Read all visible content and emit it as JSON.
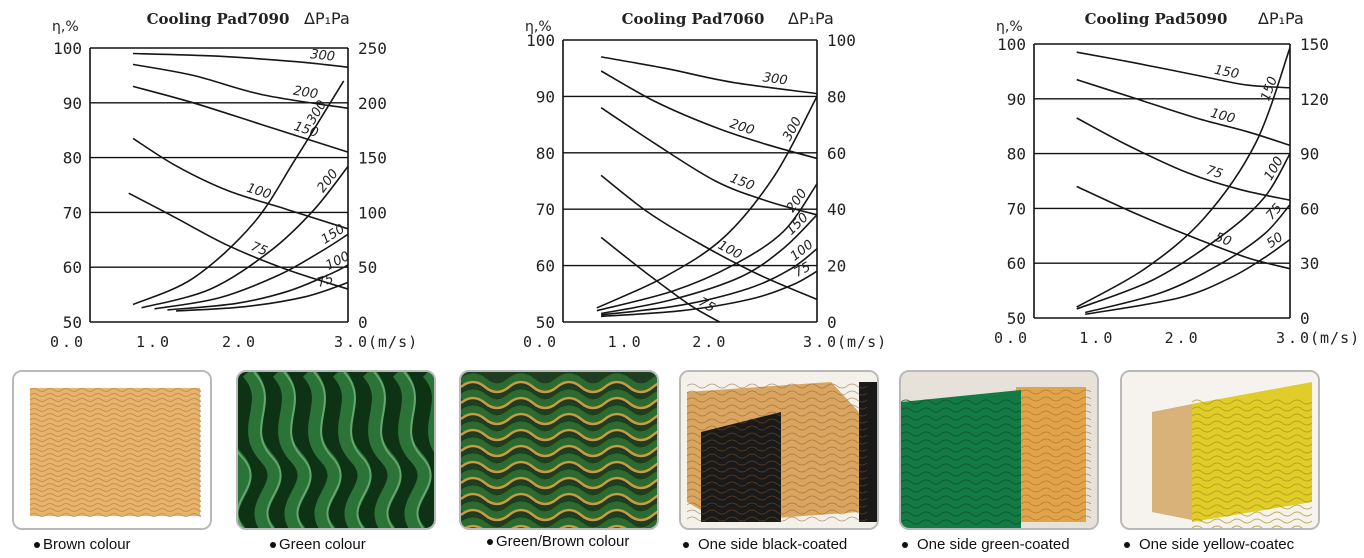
{
  "chart_data": [
    {
      "type": "line",
      "title": "Cooling Pad7090",
      "left_axis_label": "η,%",
      "right_axis_label": "ΔP₁Pa",
      "x_unit": "(m/s)",
      "x_ticks": [
        "0.0",
        "1.0",
        "2.0",
        "3.0"
      ],
      "xlim": [
        0,
        3
      ],
      "left_ylim": [
        50,
        100
      ],
      "left_ticks": [
        "50",
        "60",
        "70",
        "80",
        "90",
        "100"
      ],
      "right_ylim": [
        0,
        250
      ],
      "right_ticks": [
        "0",
        "50",
        "100",
        "150",
        "200",
        "250"
      ],
      "grid": "horizontal",
      "efficiency_series": [
        {
          "name": "300",
          "axis": "left",
          "points": [
            [
              0.5,
              99
            ],
            [
              1.5,
              98.5
            ],
            [
              2.4,
              97.5
            ],
            [
              3.0,
              96.5
            ]
          ]
        },
        {
          "name": "200",
          "axis": "left",
          "points": [
            [
              0.5,
              97
            ],
            [
              1.2,
              95
            ],
            [
              2.0,
              91.5
            ],
            [
              3.0,
              89
            ]
          ]
        },
        {
          "name": "150",
          "axis": "left",
          "points": [
            [
              0.5,
              93
            ],
            [
              1.2,
              90
            ],
            [
              2.0,
              86
            ],
            [
              3.0,
              81
            ]
          ]
        },
        {
          "name": "100",
          "axis": "left",
          "points": [
            [
              0.5,
              83.5
            ],
            [
              1.0,
              78.5
            ],
            [
              1.6,
              74
            ],
            [
              2.3,
              70.5
            ],
            [
              3.0,
              67
            ]
          ]
        },
        {
          "name": "75",
          "axis": "left",
          "points": [
            [
              0.45,
              73.5
            ],
            [
              1.0,
              69
            ],
            [
              1.6,
              64
            ],
            [
              2.3,
              59.5
            ],
            [
              3.0,
              56
            ]
          ]
        }
      ],
      "pressure_series": [
        {
          "name": "300",
          "axis": "right",
          "points": [
            [
              0.5,
              16
            ],
            [
              1.2,
              40
            ],
            [
              1.9,
              90
            ],
            [
              2.4,
              150
            ],
            [
              2.95,
              220
            ]
          ]
        },
        {
          "name": "200",
          "axis": "right",
          "points": [
            [
              0.6,
              13
            ],
            [
              1.4,
              30
            ],
            [
              2.1,
              65
            ],
            [
              2.6,
              102
            ],
            [
              3.0,
              142
            ]
          ]
        },
        {
          "name": "150",
          "axis": "right",
          "points": [
            [
              0.75,
              12
            ],
            [
              1.5,
              22
            ],
            [
              2.2,
              43
            ],
            [
              2.7,
              65
            ],
            [
              3.0,
              80
            ]
          ]
        },
        {
          "name": "100",
          "axis": "right",
          "points": [
            [
              0.9,
              11
            ],
            [
              1.7,
              17
            ],
            [
              2.3,
              28
            ],
            [
              2.8,
              44
            ],
            [
              3.0,
              52
            ]
          ]
        },
        {
          "name": "75",
          "axis": "right",
          "points": [
            [
              1.0,
              10
            ],
            [
              1.8,
              14
            ],
            [
              2.5,
              23
            ],
            [
              3.0,
              36
            ]
          ]
        }
      ]
    },
    {
      "type": "line",
      "title": "Cooling Pad7060",
      "left_axis_label": "η,%",
      "right_axis_label": "ΔP₁Pa",
      "x_unit": "(m/s)",
      "x_ticks": [
        "0.0",
        "1.0",
        "2.0",
        "3.0"
      ],
      "xlim": [
        0,
        3
      ],
      "left_ylim": [
        50,
        100
      ],
      "left_ticks": [
        "50",
        "60",
        "70",
        "80",
        "90",
        "100"
      ],
      "right_ylim": [
        0,
        100
      ],
      "right_ticks": [
        "0",
        "20",
        "40",
        "60",
        "80",
        "100"
      ],
      "grid": "horizontal",
      "efficiency_series": [
        {
          "name": "300",
          "axis": "left",
          "points": [
            [
              0.45,
              97
            ],
            [
              1.2,
              95
            ],
            [
              2.0,
              92.5
            ],
            [
              3.0,
              90.5
            ]
          ]
        },
        {
          "name": "200",
          "axis": "left",
          "points": [
            [
              0.45,
              94.5
            ],
            [
              1.1,
              89
            ],
            [
              1.8,
              84.5
            ],
            [
              2.4,
              81.5
            ],
            [
              3.0,
              79
            ]
          ]
        },
        {
          "name": "150",
          "axis": "left",
          "points": [
            [
              0.45,
              88
            ],
            [
              1.1,
              81.5
            ],
            [
              1.8,
              75
            ],
            [
              2.4,
              71.5
            ],
            [
              3.0,
              69
            ]
          ]
        },
        {
          "name": "100",
          "axis": "left",
          "points": [
            [
              0.45,
              76
            ],
            [
              1.0,
              69.5
            ],
            [
              1.6,
              64
            ],
            [
              2.3,
              58.5
            ],
            [
              3.0,
              54
            ]
          ]
        },
        {
          "name": "75",
          "axis": "left",
          "points": [
            [
              0.45,
              65
            ],
            [
              1.0,
              58.5
            ],
            [
              1.5,
              53
            ],
            [
              1.85,
              50
            ]
          ]
        }
      ],
      "pressure_series": [
        {
          "name": "300",
          "axis": "right",
          "points": [
            [
              0.4,
              5
            ],
            [
              1.2,
              16
            ],
            [
              1.9,
              30
            ],
            [
              2.5,
              52
            ],
            [
              3.0,
              80
            ]
          ]
        },
        {
          "name": "200",
          "axis": "right",
          "points": [
            [
              0.4,
              4
            ],
            [
              1.3,
              11
            ],
            [
              2.0,
              20
            ],
            [
              2.6,
              32
            ],
            [
              3.0,
              49
            ]
          ]
        },
        {
          "name": "150",
          "axis": "right",
          "points": [
            [
              0.45,
              3
            ],
            [
              1.3,
              8
            ],
            [
              2.1,
              16
            ],
            [
              2.6,
              26
            ],
            [
              3.0,
              38
            ]
          ]
        },
        {
          "name": "100",
          "axis": "right",
          "points": [
            [
              0.45,
              2.5
            ],
            [
              1.4,
              6
            ],
            [
              2.2,
              12
            ],
            [
              2.7,
              19
            ],
            [
              3.0,
              26
            ]
          ]
        },
        {
          "name": "75",
          "axis": "right",
          "points": [
            [
              0.45,
              2
            ],
            [
              1.4,
              4
            ],
            [
              2.2,
              8
            ],
            [
              2.7,
              13
            ],
            [
              3.0,
              18
            ]
          ]
        }
      ]
    },
    {
      "type": "line",
      "title": "Cooling Pad5090",
      "left_axis_label": "η,%",
      "right_axis_label": "ΔP₁Pa",
      "x_unit": "(m/s)",
      "x_ticks": [
        "0.0",
        "1.0",
        "2.0",
        "3.0"
      ],
      "xlim": [
        0,
        3
      ],
      "left_ylim": [
        50,
        100
      ],
      "left_ticks": [
        "50",
        "60",
        "70",
        "80",
        "90",
        "100"
      ],
      "right_ylim": [
        0,
        150
      ],
      "right_ticks": [
        "0",
        "30",
        "60",
        "90",
        "120",
        "150"
      ],
      "grid": "horizontal",
      "efficiency_series": [
        {
          "name": "150",
          "axis": "left",
          "points": [
            [
              0.5,
              98.5
            ],
            [
              1.2,
              96.5
            ],
            [
              2.0,
              94
            ],
            [
              2.5,
              92.5
            ],
            [
              3.0,
              92
            ]
          ]
        },
        {
          "name": "100",
          "axis": "left",
          "points": [
            [
              0.5,
              93.5
            ],
            [
              1.2,
              90
            ],
            [
              1.9,
              86.5
            ],
            [
              2.5,
              84
            ],
            [
              3.0,
              81.5
            ]
          ]
        },
        {
          "name": "75",
          "axis": "left",
          "points": [
            [
              0.5,
              86.5
            ],
            [
              1.1,
              81.5
            ],
            [
              1.8,
              76.5
            ],
            [
              2.4,
              73.5
            ],
            [
              3.0,
              71.5
            ]
          ]
        },
        {
          "name": "50",
          "axis": "left",
          "points": [
            [
              0.5,
              74
            ],
            [
              1.2,
              69
            ],
            [
              1.9,
              64.5
            ],
            [
              2.5,
              61
            ],
            [
              3.0,
              59
            ]
          ]
        }
      ],
      "pressure_series": [
        {
          "name": "150",
          "axis": "right",
          "points": [
            [
              0.5,
              6
            ],
            [
              1.3,
              27
            ],
            [
              2.0,
              55
            ],
            [
              2.6,
              96
            ],
            [
              3.0,
              148
            ]
          ]
        },
        {
          "name": "100",
          "axis": "right",
          "points": [
            [
              0.5,
              5
            ],
            [
              1.4,
              21
            ],
            [
              2.2,
              45
            ],
            [
              2.7,
              66
            ],
            [
              3.0,
              90
            ]
          ]
        },
        {
          "name": "75",
          "axis": "right",
          "points": [
            [
              0.6,
              3
            ],
            [
              1.5,
              14
            ],
            [
              2.2,
              30
            ],
            [
              2.7,
              46
            ],
            [
              3.0,
              62
            ]
          ]
        },
        {
          "name": "50",
          "axis": "right",
          "points": [
            [
              0.6,
              2
            ],
            [
              1.7,
              11
            ],
            [
              2.3,
              22
            ],
            [
              2.7,
              33
            ],
            [
              3.0,
              43
            ]
          ]
        }
      ]
    }
  ],
  "photos": [
    {
      "caption": "Brown colour",
      "style": "brown",
      "colors": [
        "#e7b46e",
        "#b9803f"
      ]
    },
    {
      "caption": "Green colour",
      "style": "green",
      "colors": [
        "#2f7a3a",
        "#0d3214"
      ]
    },
    {
      "caption": "Green/Brown colour",
      "style": "green-brown",
      "colors": [
        "#2c6b2f",
        "#c99a45"
      ]
    },
    {
      "caption": "One side black-coated",
      "style": "black",
      "colors": [
        "#1a1a1a",
        "#d9a560"
      ]
    },
    {
      "caption": "One side green-coated",
      "style": "green-side",
      "colors": [
        "#147a45",
        "#e2a44a"
      ]
    },
    {
      "caption": "One side yellow-coatec",
      "style": "yellow",
      "colors": [
        "#e1cd2a",
        "#d9b27a"
      ]
    }
  ]
}
